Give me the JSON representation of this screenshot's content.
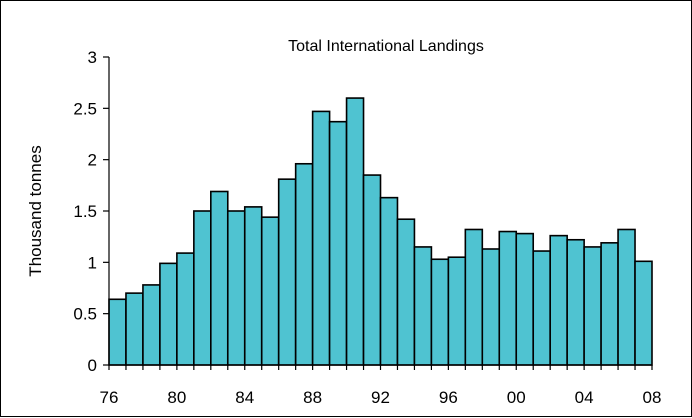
{
  "chart_data": {
    "type": "bar",
    "title": "Total International Landings",
    "xlabel": "",
    "ylabel": "Thousand tonnes",
    "ylim": [
      0,
      3
    ],
    "yticks": [
      "0",
      "0.5",
      "1",
      "1.5",
      "2",
      "2.5",
      "3"
    ],
    "xtick_labels": [
      "76",
      "80",
      "84",
      "88",
      "92",
      "96",
      "00",
      "04",
      "08"
    ],
    "grid": false,
    "legend": "none",
    "bar_color": "#4fc3d1",
    "categories": [
      "1976",
      "1977",
      "1978",
      "1979",
      "1980",
      "1981",
      "1982",
      "1983",
      "1984",
      "1985",
      "1986",
      "1987",
      "1988",
      "1989",
      "1990",
      "1991",
      "1992",
      "1993",
      "1994",
      "1995",
      "1996",
      "1997",
      "1998",
      "1999",
      "2000",
      "2001",
      "2002",
      "2003",
      "2004",
      "2005",
      "2006",
      "2007"
    ],
    "values": [
      0.64,
      0.7,
      0.78,
      0.99,
      1.09,
      1.5,
      1.69,
      1.5,
      1.54,
      1.44,
      1.81,
      1.96,
      2.47,
      2.37,
      2.6,
      1.85,
      1.63,
      1.42,
      1.15,
      1.03,
      1.05,
      1.32,
      1.13,
      1.3,
      1.28,
      1.11,
      1.26,
      1.22,
      1.15,
      1.19,
      1.32,
      1.01
    ]
  }
}
